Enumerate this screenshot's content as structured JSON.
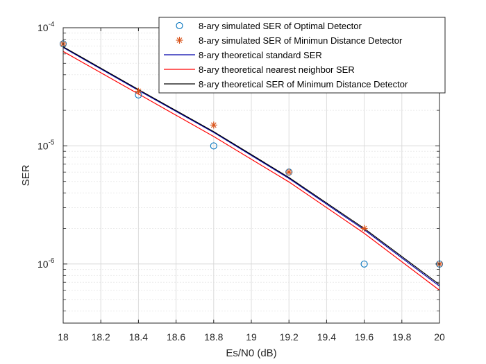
{
  "chart_data": {
    "type": "line",
    "xlabel": "Es/N0 (dB)",
    "ylabel": "SER",
    "xlim": [
      18,
      20
    ],
    "ylim_log10": [
      -6.5,
      -4
    ],
    "yscale": "log",
    "grid": true,
    "legend_position": "top-right",
    "x_ticks": [
      "18",
      "18.2",
      "18.4",
      "18.6",
      "18.8",
      "19",
      "19.2",
      "19.4",
      "19.6",
      "19.8",
      "20"
    ],
    "y_ticks": [
      {
        "base": "10",
        "exp": "-4",
        "value": 0.0001
      },
      {
        "base": "10",
        "exp": "-5",
        "value": 1e-05
      },
      {
        "base": "10",
        "exp": "-6",
        "value": 1e-06
      }
    ],
    "series": [
      {
        "name": "8-ary simulated SER of Optimal Detector",
        "kind": "marker-circle",
        "color": "#0072BD",
        "x": [
          18,
          18.4,
          18.8,
          19.2,
          19.6,
          20
        ],
        "y": [
          7.3e-05,
          2.7e-05,
          1e-05,
          6e-06,
          1e-06,
          1e-06
        ]
      },
      {
        "name": "8-ary simulated SER of Minimun Distance Detector",
        "kind": "marker-star",
        "color": "#D95319",
        "x": [
          18,
          18.4,
          18.8,
          19.2,
          19.6,
          20
        ],
        "y": [
          7.3e-05,
          2.9e-05,
          1.5e-05,
          6e-06,
          2e-06,
          1e-06
        ]
      },
      {
        "name": "8-ary theoretical standard SER",
        "kind": "line",
        "color": "#0000AA",
        "x": [
          18,
          18.4,
          18.8,
          19.2,
          19.6,
          20
        ],
        "y": [
          6.8e-05,
          2.95e-05,
          1.3e-05,
          5.3e-06,
          1.95e-06,
          6.5e-07
        ]
      },
      {
        "name": "8-ary theoretical nearest neighbor SER",
        "kind": "line",
        "color": "#FF0000",
        "x": [
          18,
          18.4,
          18.8,
          19.2,
          19.6,
          20
        ],
        "y": [
          6.3e-05,
          2.75e-05,
          1.2e-05,
          4.95e-06,
          1.82e-06,
          6e-07
        ]
      },
      {
        "name": "8-ary theoretical SER of Minimum Distance Detector",
        "kind": "line",
        "color": "#000000",
        "x": [
          18,
          18.4,
          18.8,
          19.2,
          19.6,
          20
        ],
        "y": [
          6.9e-05,
          3e-05,
          1.32e-05,
          5.4e-06,
          2e-06,
          6.7e-07
        ]
      }
    ]
  }
}
